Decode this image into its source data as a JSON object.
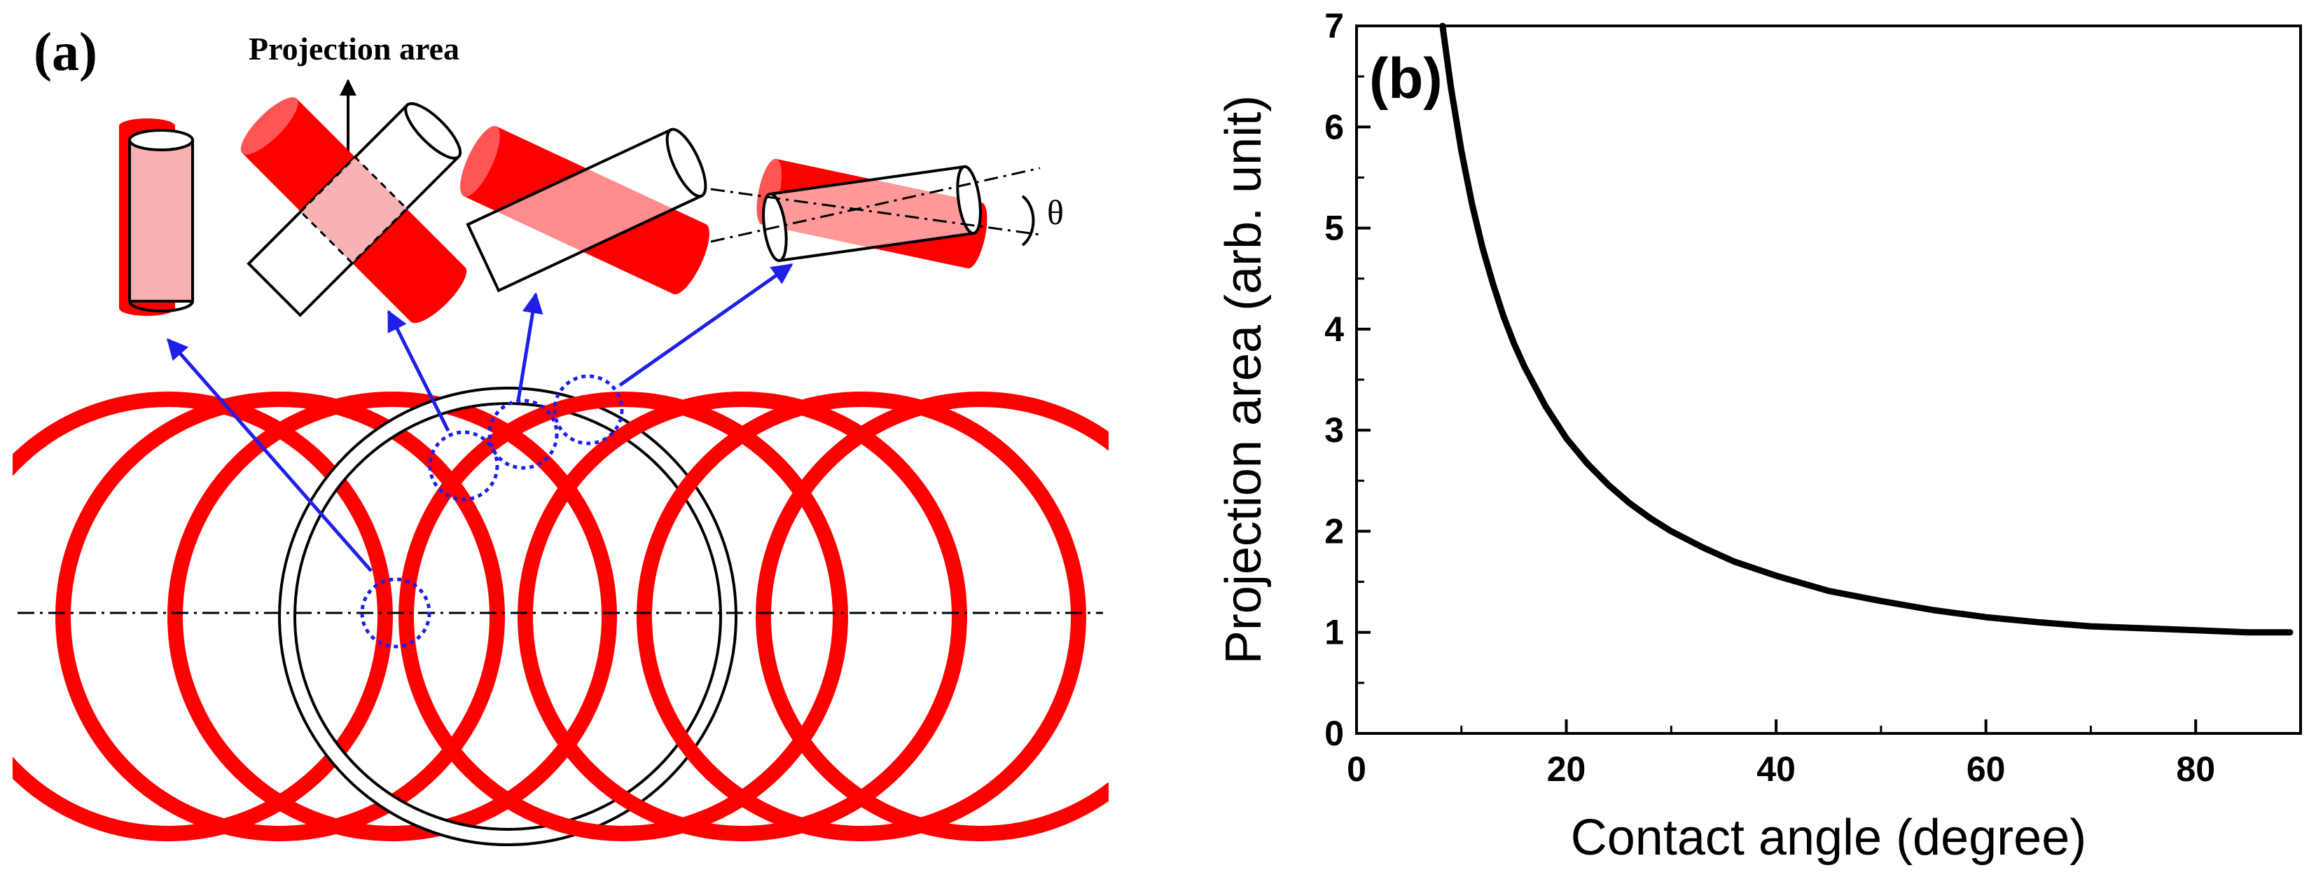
{
  "panel_a": {
    "label": "(a)",
    "projection_label": "Projection area",
    "theta_label": "θ",
    "colors": {
      "red": "#ff0000",
      "light_red": "#f5a0a0",
      "blue": "#1f1fe8",
      "black": "#000000"
    }
  },
  "panel_b": {
    "label": "(b)"
  },
  "chart_data": {
    "type": "line",
    "title": "",
    "xlabel": "Contact angle (degree)",
    "ylabel": "Projection area (arb. unit)",
    "xlim": [
      0,
      90
    ],
    "ylim": [
      0,
      7
    ],
    "xticks": [
      0,
      20,
      40,
      60,
      80
    ],
    "yticks": [
      0,
      1,
      2,
      3,
      4,
      5,
      6,
      7
    ],
    "grid": false,
    "series": [
      {
        "name": "Projection area",
        "color": "#000000",
        "x": [
          8.2,
          9,
          10,
          11,
          12,
          13,
          14,
          15,
          16,
          18,
          20,
          22,
          24,
          26,
          28,
          30,
          33,
          36,
          40,
          45,
          50,
          55,
          60,
          65,
          70,
          75,
          80,
          85,
          89
        ],
        "y": [
          7.01,
          6.39,
          5.76,
          5.24,
          4.81,
          4.45,
          4.13,
          3.86,
          3.63,
          3.24,
          2.92,
          2.67,
          2.46,
          2.28,
          2.13,
          2.0,
          1.84,
          1.7,
          1.56,
          1.41,
          1.31,
          1.22,
          1.15,
          1.1,
          1.06,
          1.04,
          1.02,
          1.0,
          1.0
        ]
      }
    ]
  }
}
